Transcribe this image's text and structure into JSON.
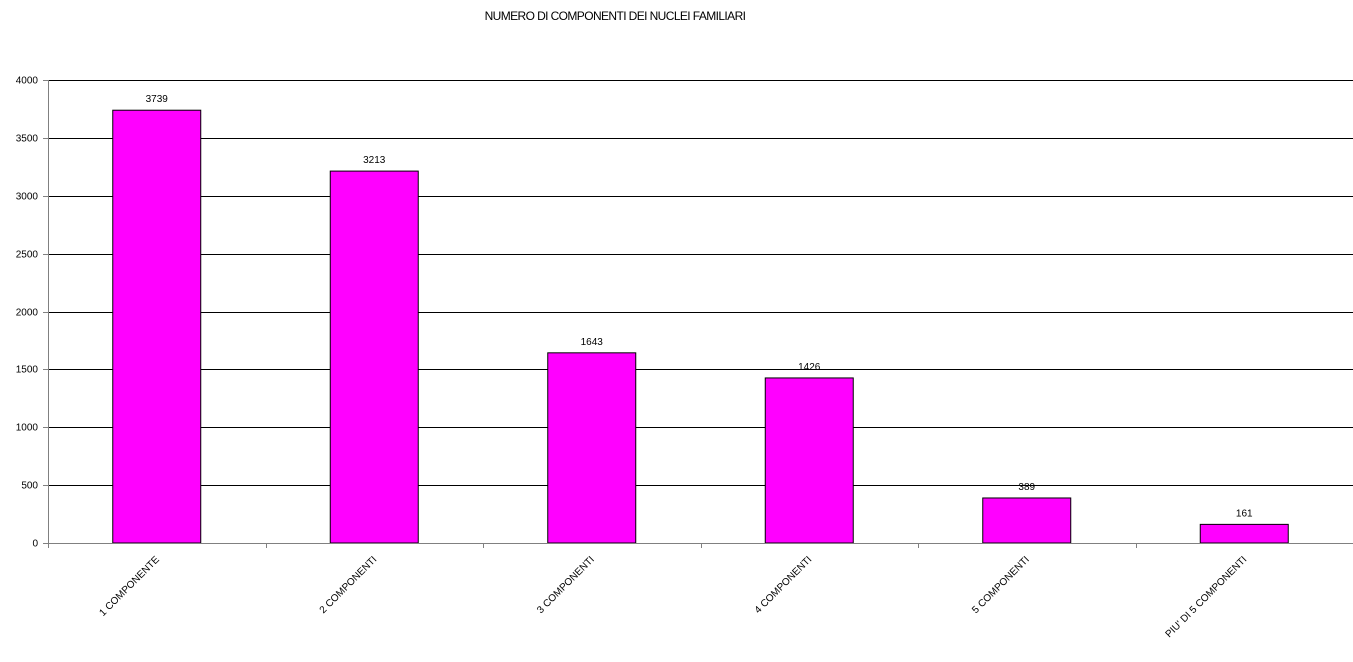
{
  "chart_data": {
    "type": "bar",
    "title": "NUMERO DI COMPONENTI DEI NUCLEI FAMILIARI",
    "categories": [
      "1 COMPONENTE",
      "2 COMPONENTI",
      "3 COMPONENTI",
      "4 COMPONENTI",
      "5 COMPONENTI",
      "PIU' DI 5 COMPONENTI"
    ],
    "values": [
      3739,
      3213,
      1643,
      1426,
      389,
      161
    ],
    "ylim": [
      0,
      4000
    ],
    "yticks": [
      0,
      500,
      1000,
      1500,
      2000,
      2500,
      3000,
      3500,
      4000
    ],
    "xlabel": "",
    "ylabel": "",
    "grid": true,
    "bar_color": "#FF00FF",
    "legend": "none"
  }
}
